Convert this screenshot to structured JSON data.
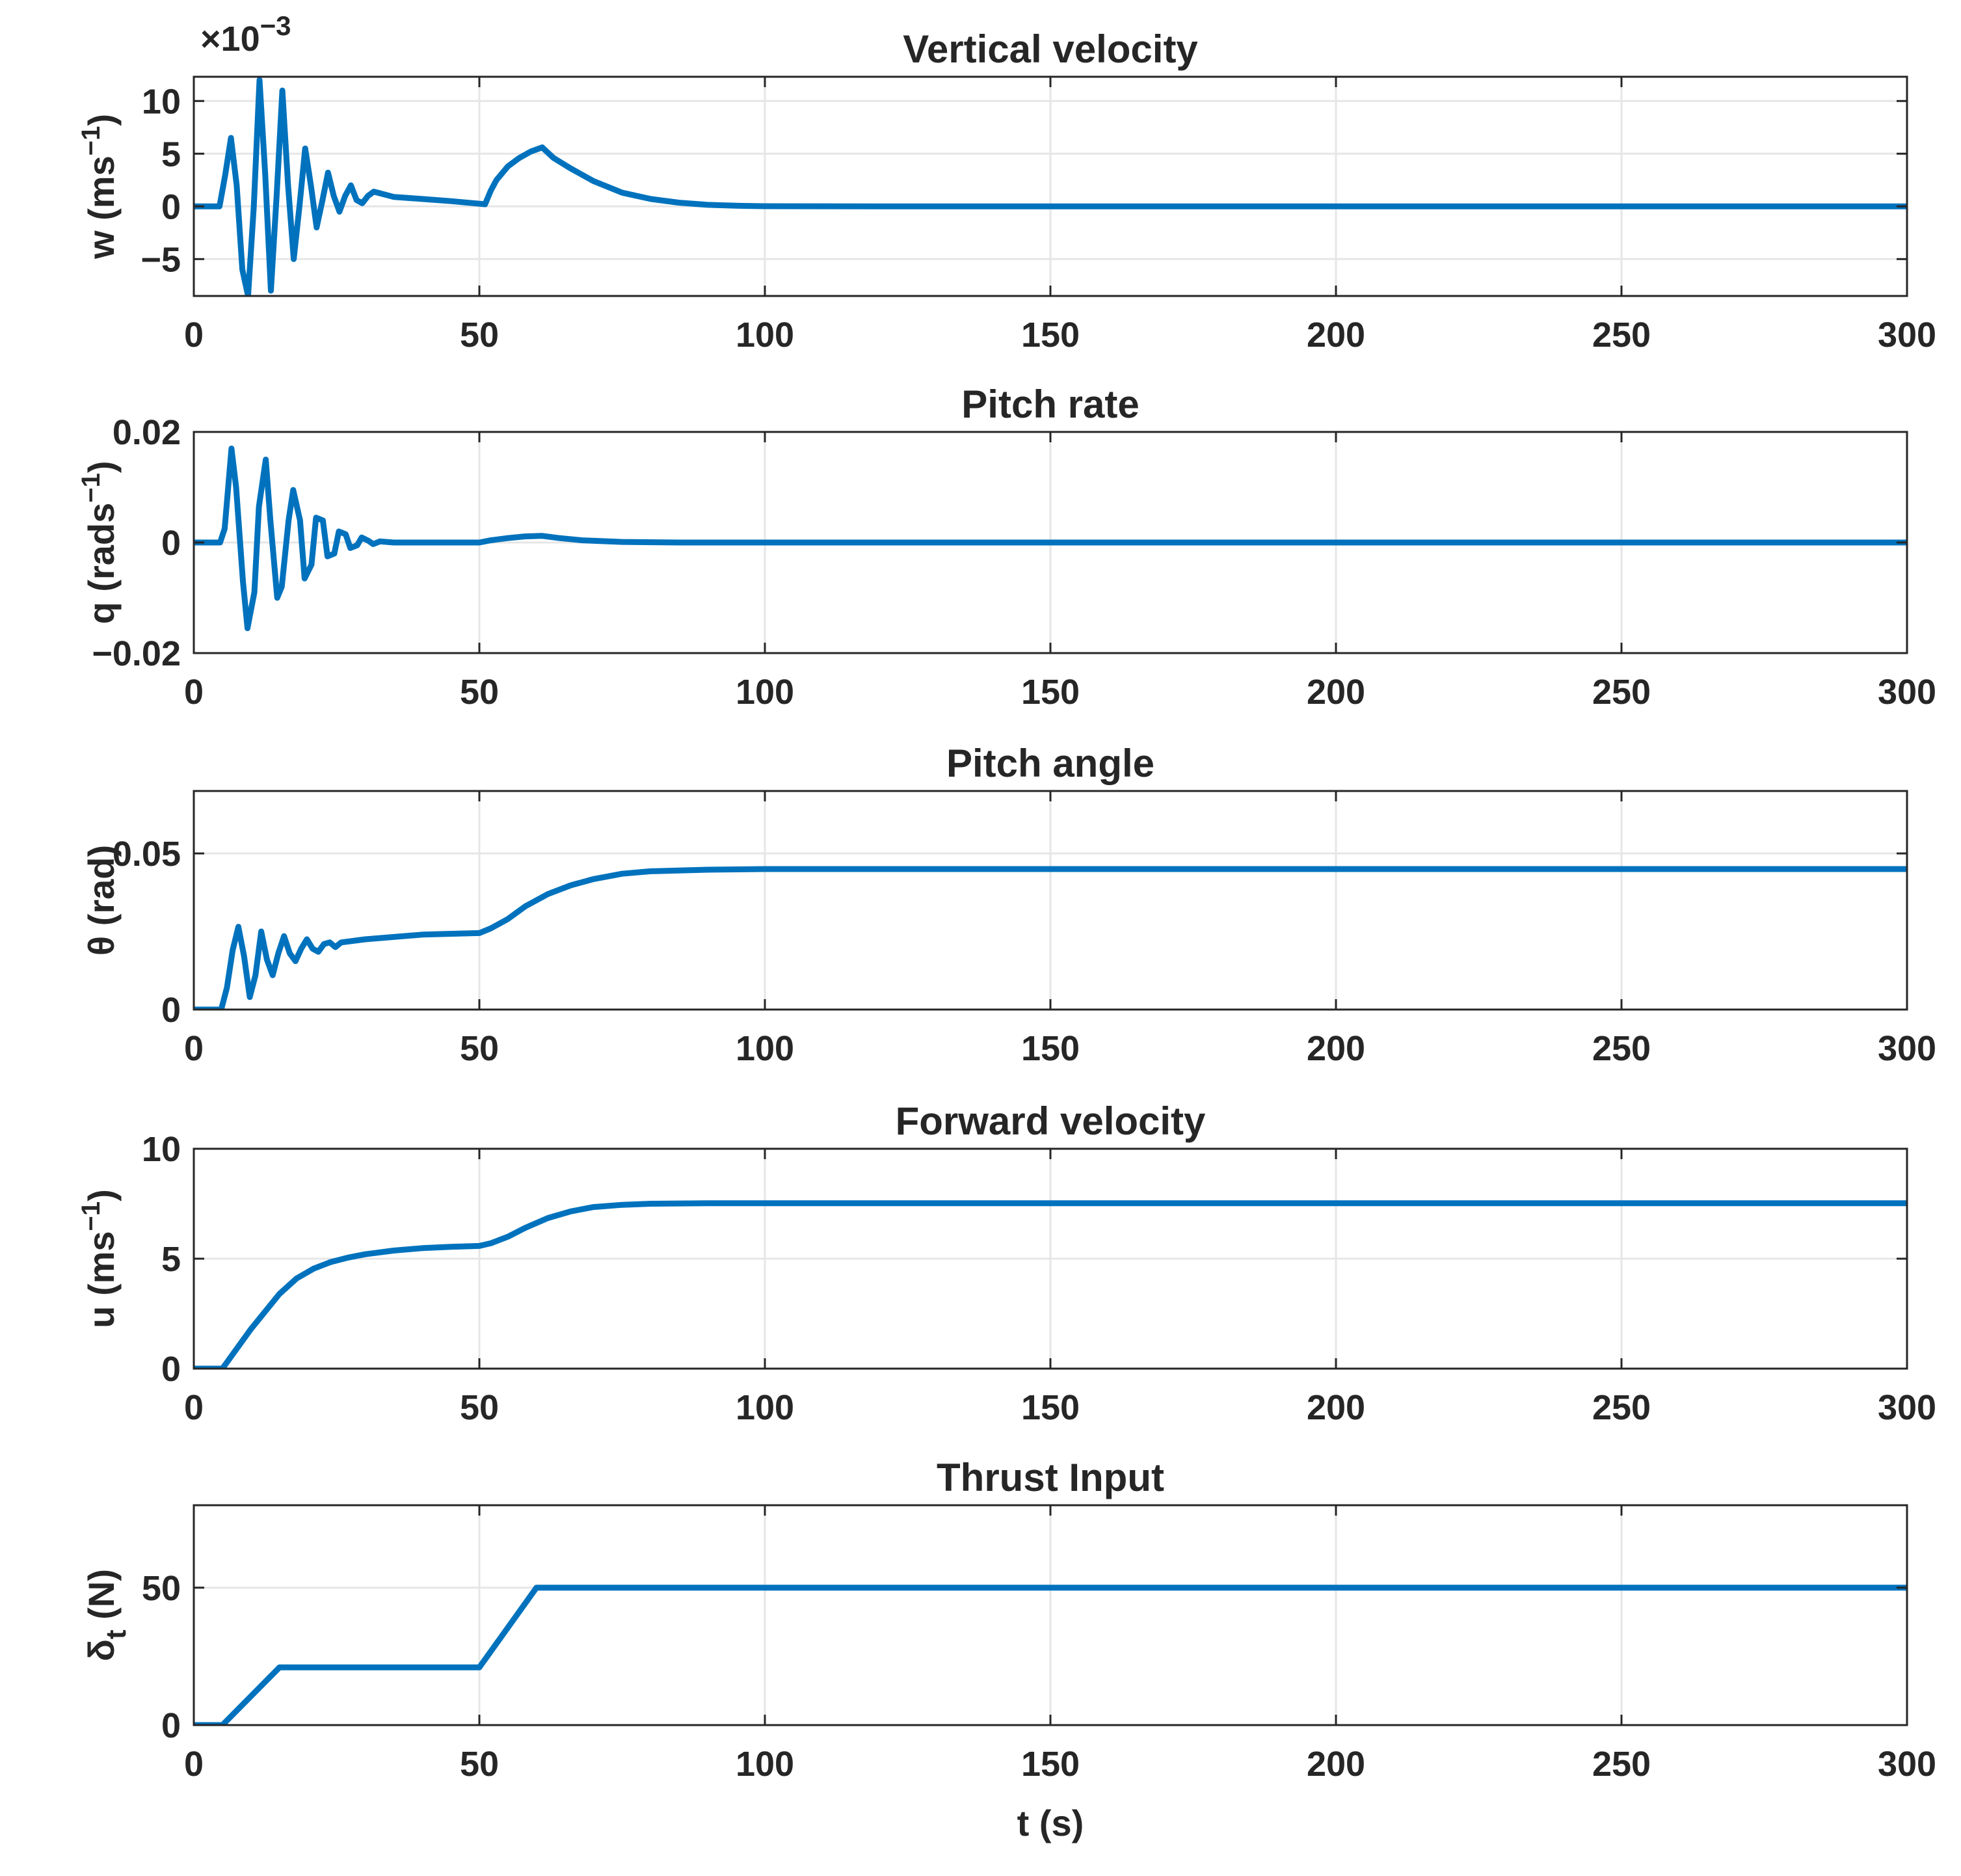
{
  "chart_data": [
    {
      "type": "line",
      "title": "Vertical velocity",
      "ylabel_main": "w (ms",
      "ylabel_sup": "−1",
      "ylabel_end": ")",
      "exponent_base": "×10",
      "exponent_sup": "−3",
      "xlabel": "",
      "xlim": [
        0,
        300
      ],
      "ylim": [
        -8.5,
        12.3
      ],
      "xticks": [
        0,
        50,
        100,
        150,
        200,
        250,
        300
      ],
      "xtick_labels": [
        "0",
        "50",
        "100",
        "150",
        "200",
        "250",
        "300"
      ],
      "yticks": [
        -5,
        0,
        5,
        10
      ],
      "ytick_labels": [
        "−5",
        "0",
        "5",
        "10"
      ],
      "series": [
        {
          "name": "w",
          "color": "#0072BD",
          "x": [
            0,
            4.5,
            5.5,
            6.5,
            7.5,
            8.5,
            9.5,
            10.5,
            11.5,
            12.5,
            13.5,
            14.5,
            15.5,
            16.5,
            17.5,
            18.5,
            19.5,
            20.5,
            21.5,
            22.5,
            23.5,
            24.5,
            25.5,
            26.5,
            27.5,
            28.5,
            29.5,
            30.5,
            31.5,
            35,
            40,
            45,
            51,
            52,
            53,
            55,
            57,
            59,
            61,
            63,
            66,
            70,
            75,
            80,
            85,
            90,
            95,
            100,
            110,
            120,
            300
          ],
          "y": [
            0,
            0,
            3,
            6.5,
            2,
            -6,
            -8.5,
            0,
            12,
            3,
            -8,
            1,
            11,
            2,
            -5,
            0,
            5.5,
            2,
            -2,
            0.5,
            3.2,
            1,
            -0.5,
            1,
            2,
            0.6,
            0.3,
            1,
            1.4,
            0.9,
            0.7,
            0.5,
            0.2,
            1.5,
            2.5,
            3.8,
            4.6,
            5.2,
            5.6,
            4.6,
            3.6,
            2.4,
            1.3,
            0.7,
            0.35,
            0.15,
            0.06,
            0.02,
            0.01,
            0,
            0
          ]
        }
      ]
    },
    {
      "type": "line",
      "title": "Pitch rate",
      "ylabel_main": "q (rads",
      "ylabel_sup": "−1",
      "ylabel_end": ")",
      "xlabel": "",
      "xlim": [
        0,
        300
      ],
      "ylim": [
        -0.02,
        0.02
      ],
      "xticks": [
        0,
        50,
        100,
        150,
        200,
        250,
        300
      ],
      "xtick_labels": [
        "0",
        "50",
        "100",
        "150",
        "200",
        "250",
        "300"
      ],
      "yticks": [
        -0.02,
        0,
        0.02
      ],
      "ytick_labels": [
        "−0.02",
        "0",
        "0.02"
      ],
      "series": [
        {
          "name": "q",
          "color": "#0072BD",
          "x": [
            0,
            4.6,
            5.4,
            6.6,
            7.4,
            8.6,
            9.4,
            10.6,
            11.4,
            12.6,
            13.4,
            14.6,
            15.4,
            16.6,
            17.4,
            18.6,
            19.4,
            20.6,
            21.4,
            22.6,
            23.4,
            24.6,
            25.4,
            26.6,
            27.4,
            28.6,
            29.4,
            30.6,
            31.4,
            32.6,
            35,
            50,
            52,
            55,
            58,
            61,
            64,
            68,
            75,
            85,
            300
          ],
          "y": [
            0,
            0,
            0.0025,
            0.017,
            0.01,
            -0.007,
            -0.0155,
            -0.009,
            0.0065,
            0.015,
            0.004,
            -0.01,
            -0.008,
            0.004,
            0.0095,
            0.004,
            -0.0065,
            -0.004,
            0.0045,
            0.004,
            -0.0025,
            -0.002,
            0.002,
            0.0015,
            -0.001,
            -0.0005,
            0.0009,
            0.0003,
            -0.0003,
            0.0002,
            0,
            0,
            0.0004,
            0.0008,
            0.0011,
            0.0012,
            0.0008,
            0.0004,
            0.0001,
            0,
            0
          ]
        }
      ]
    },
    {
      "type": "line",
      "title": "Pitch angle",
      "ylabel_main": "θ (rad)",
      "xlabel": "",
      "xlim": [
        0,
        300
      ],
      "ylim": [
        0,
        0.07
      ],
      "xticks": [
        0,
        50,
        100,
        150,
        200,
        250,
        300
      ],
      "xtick_labels": [
        "0",
        "50",
        "100",
        "150",
        "200",
        "250",
        "300"
      ],
      "yticks": [
        0,
        0.05
      ],
      "ytick_labels": [
        "0",
        "0.05"
      ],
      "series": [
        {
          "name": "theta",
          "color": "#0072BD",
          "x": [
            0,
            4.8,
            5.8,
            6.8,
            7.8,
            8.8,
            9.8,
            10.8,
            11.8,
            12.8,
            13.8,
            14.8,
            15.8,
            16.8,
            17.8,
            18.8,
            19.8,
            20.8,
            21.8,
            22.8,
            23.8,
            24.8,
            25.8,
            30,
            40,
            50,
            52,
            55,
            58,
            62,
            66,
            70,
            75,
            80,
            90,
            100,
            300
          ],
          "y": [
            0,
            0,
            0.007,
            0.019,
            0.0265,
            0.017,
            0.004,
            0.011,
            0.025,
            0.016,
            0.011,
            0.018,
            0.0235,
            0.018,
            0.0155,
            0.0195,
            0.0225,
            0.0195,
            0.0185,
            0.021,
            0.0215,
            0.02,
            0.0215,
            0.0225,
            0.024,
            0.0245,
            0.026,
            0.029,
            0.033,
            0.037,
            0.0398,
            0.0418,
            0.0435,
            0.0443,
            0.0448,
            0.045,
            0.045
          ]
        }
      ]
    },
    {
      "type": "line",
      "title": "Forward velocity",
      "ylabel_main": "u (ms",
      "ylabel_sup": "−1",
      "ylabel_end": ")",
      "xlabel": "",
      "xlim": [
        0,
        300
      ],
      "ylim": [
        0,
        10
      ],
      "xticks": [
        0,
        50,
        100,
        150,
        200,
        250,
        300
      ],
      "xtick_labels": [
        "0",
        "50",
        "100",
        "150",
        "200",
        "250",
        "300"
      ],
      "yticks": [
        0,
        5,
        10
      ],
      "ytick_labels": [
        "0",
        "5",
        "10"
      ],
      "series": [
        {
          "name": "u",
          "color": "#0072BD",
          "x": [
            0,
            5,
            10,
            15,
            18,
            21,
            24,
            27,
            30,
            35,
            40,
            45,
            50,
            52,
            55,
            58,
            62,
            66,
            70,
            75,
            80,
            90,
            100,
            300
          ],
          "y": [
            0,
            0,
            1.8,
            3.4,
            4.1,
            4.55,
            4.85,
            5.05,
            5.2,
            5.37,
            5.48,
            5.54,
            5.58,
            5.7,
            6.0,
            6.4,
            6.85,
            7.15,
            7.35,
            7.45,
            7.5,
            7.52,
            7.52,
            7.52
          ]
        }
      ]
    },
    {
      "type": "line",
      "title": "Thrust Input",
      "ylabel_main": "δ",
      "ylabel_sub": "t",
      "ylabel_end": " (N)",
      "xlabel": "t (s)",
      "xlim": [
        0,
        300
      ],
      "ylim": [
        0,
        80
      ],
      "xticks": [
        0,
        50,
        100,
        150,
        200,
        250,
        300
      ],
      "xtick_labels": [
        "0",
        "50",
        "100",
        "150",
        "200",
        "250",
        "300"
      ],
      "yticks": [
        0,
        50
      ],
      "ytick_labels": [
        "0",
        "50"
      ],
      "series": [
        {
          "name": "delta_t",
          "color": "#0072BD",
          "x": [
            0,
            5,
            15,
            50,
            60,
            300
          ],
          "y": [
            0,
            0,
            21,
            21,
            50,
            50
          ]
        }
      ]
    }
  ]
}
